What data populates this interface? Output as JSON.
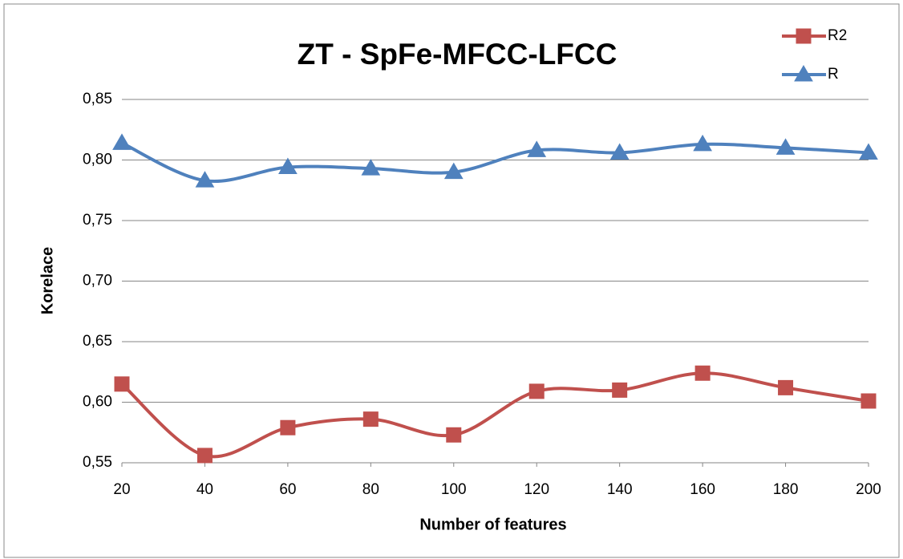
{
  "chart_data": {
    "type": "line",
    "title": "ZT - SpFe-MFCC-LFCC",
    "x_label": "Number of features",
    "y_label": "Korelace",
    "x": [
      20,
      40,
      60,
      80,
      100,
      120,
      140,
      160,
      180,
      200
    ],
    "xlim": [
      20,
      200
    ],
    "xticks": [
      20,
      40,
      60,
      80,
      100,
      120,
      140,
      160,
      180,
      200
    ],
    "ylim": [
      0.55,
      0.85
    ],
    "yticks": [
      {
        "value": 0.55,
        "label": "0,55"
      },
      {
        "value": 0.6,
        "label": "0,60"
      },
      {
        "value": 0.65,
        "label": "0,65"
      },
      {
        "value": 0.7,
        "label": "0,70"
      },
      {
        "value": 0.75,
        "label": "0,75"
      },
      {
        "value": 0.8,
        "label": "0,80"
      },
      {
        "value": 0.85,
        "label": "0,85"
      }
    ],
    "grid": true,
    "legend": "top-right",
    "smooth": true,
    "series": [
      {
        "name": "R2",
        "color": "#c0504d",
        "marker": "square",
        "values": [
          0.615,
          0.556,
          0.579,
          0.586,
          0.573,
          0.609,
          0.61,
          0.624,
          0.612,
          0.601
        ]
      },
      {
        "name": "R",
        "color": "#4f81bd",
        "marker": "triangle",
        "values": [
          0.814,
          0.783,
          0.794,
          0.793,
          0.79,
          0.808,
          0.806,
          0.813,
          0.81,
          0.806
        ]
      }
    ]
  }
}
